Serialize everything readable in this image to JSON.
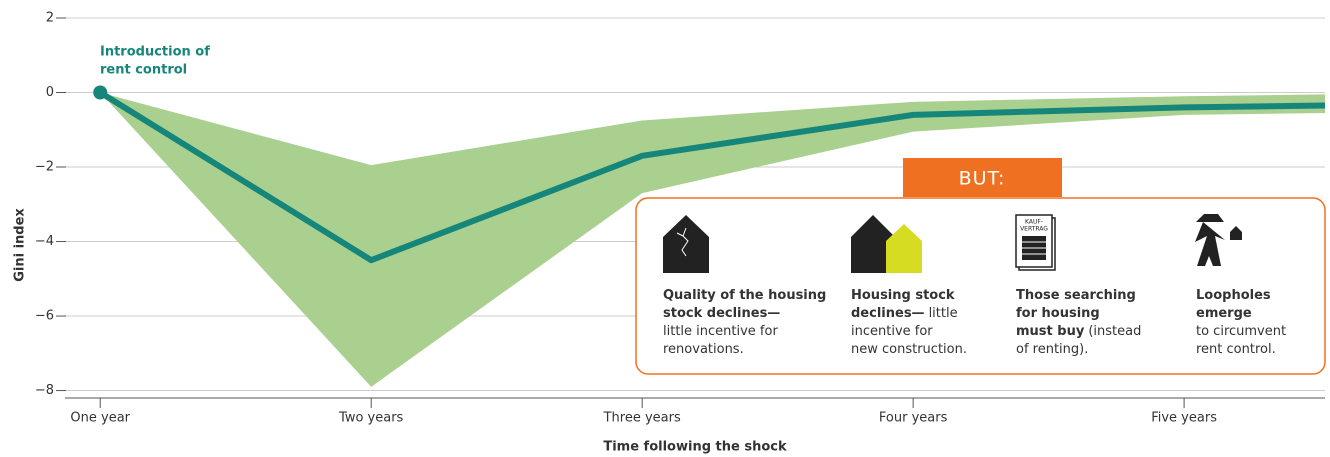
{
  "chart_data": {
    "type": "line",
    "y_label": "Gini index",
    "x_label": "Time following the shock",
    "x": [
      1,
      2,
      3,
      4,
      5,
      5.52
    ],
    "xlim": [
      0.87,
      5.52
    ],
    "xticks": [
      {
        "value": 1,
        "label": "One year"
      },
      {
        "value": 2,
        "label": "Two years"
      },
      {
        "value": 3,
        "label": "Three years"
      },
      {
        "value": 4,
        "label": "Four years"
      },
      {
        "value": 5,
        "label": "Five years"
      }
    ],
    "ylim": [
      -8.2,
      2
    ],
    "yticks": [
      {
        "value": -8,
        "label": "−8"
      },
      {
        "value": -6,
        "label": "−6"
      },
      {
        "value": -4,
        "label": "−4"
      },
      {
        "value": -2,
        "label": "−2"
      },
      0,
      2
    ],
    "grid": true,
    "line": {
      "color": "#17867a",
      "values": [
        0,
        -4.5,
        -1.7,
        -0.6,
        -0.4,
        -0.35
      ]
    },
    "band": {
      "color": "#a9d08f",
      "upper": [
        0,
        -1.95,
        -0.75,
        -0.25,
        -0.1,
        -0.05
      ],
      "lower": [
        0,
        -7.9,
        -2.7,
        -1.05,
        -0.6,
        -0.55
      ]
    },
    "annotation": [
      "Introduction of",
      "rent control"
    ],
    "callout": {
      "title": "BUT:",
      "color": "#f07022",
      "icon_text": [
        "KAUF-",
        "VERTRAG"
      ],
      "items": [
        [
          {
            "bold": "Quality of the housing"
          },
          {
            "bold": "stock declines—"
          },
          {
            "normal": "little incentive for"
          },
          {
            "normal": "renovations."
          }
        ],
        [
          {
            "bold": "Housing stock"
          },
          {
            "bold": "declines—",
            "normal": "little"
          },
          {
            "normal": "incentive for"
          },
          {
            "normal": "new construction."
          }
        ],
        [
          {
            "bold": "Those searching"
          },
          {
            "bold": "for housing"
          },
          {
            "bold": "must buy",
            "normal": "(instead"
          },
          {
            "normal": "of renting)."
          }
        ],
        [
          {
            "bold": "Loopholes"
          },
          {
            "bold": "emerge"
          },
          {
            "normal": "to circumvent"
          },
          {
            "normal": "rent control."
          }
        ]
      ]
    }
  }
}
